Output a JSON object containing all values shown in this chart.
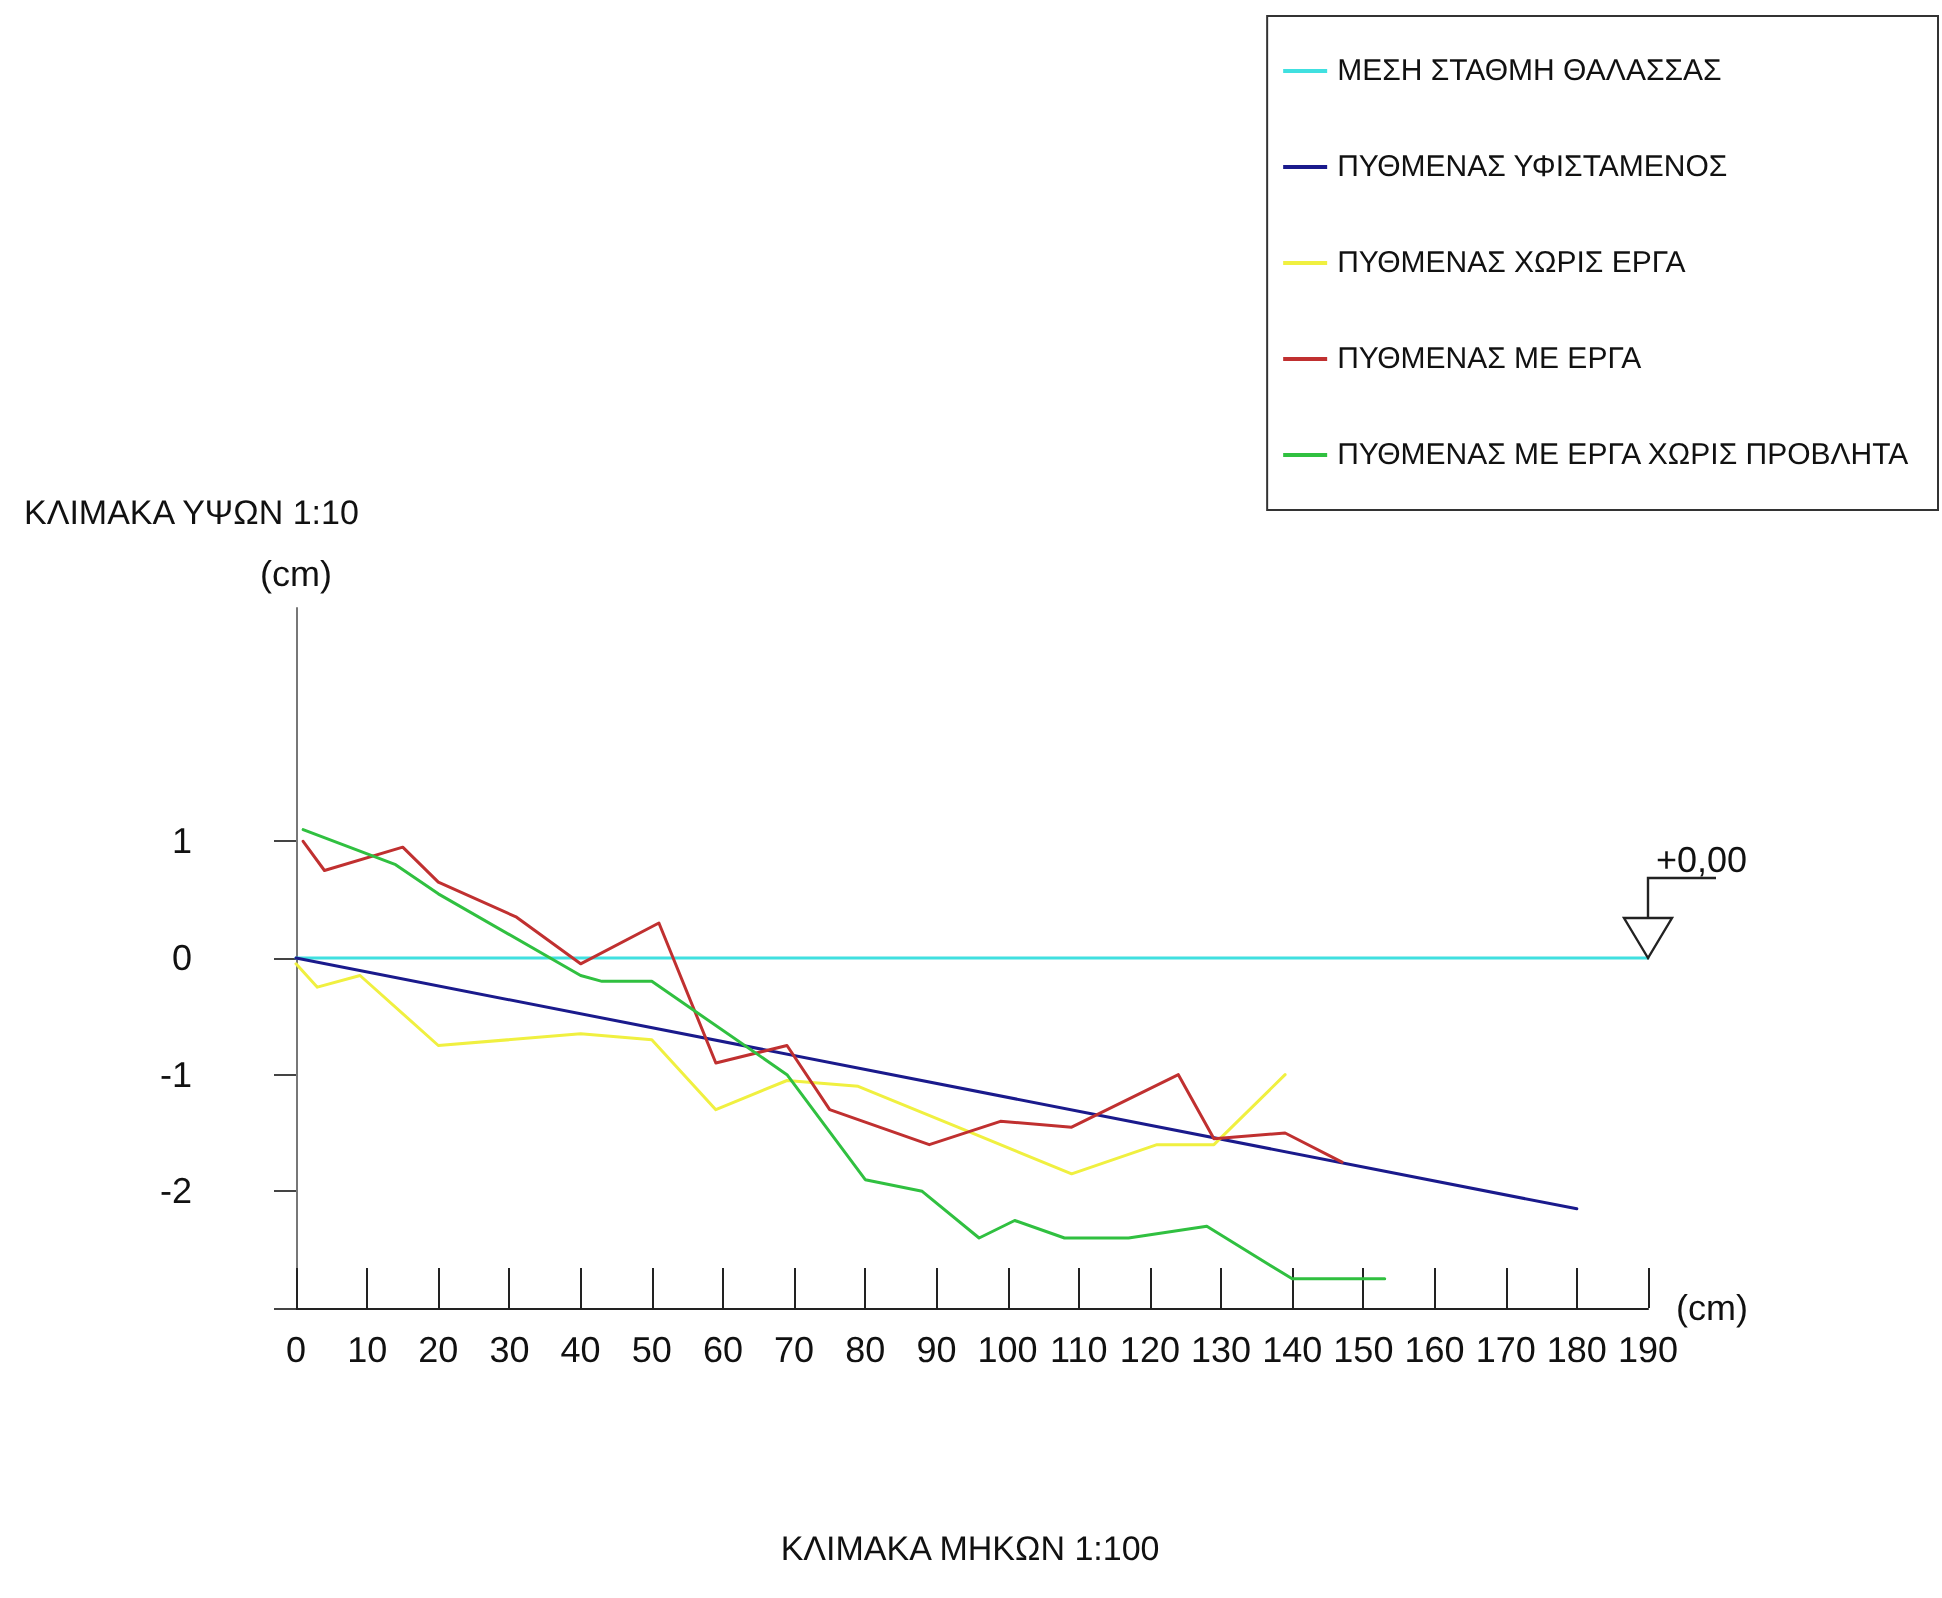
{
  "chart_data": {
    "type": "line",
    "xlabel": "(cm)",
    "ylabel": "(cm)",
    "annotations": [
      "ΚΛΙΜΑΚΑ ΥΨΩΝ 1:10",
      "ΚΛΙΜΑΚΑ ΜΗΚΩΝ 1:100",
      {
        "text": "+0,00",
        "x": 190,
        "y": 0
      }
    ],
    "series": [
      {
        "name": "ΜΕΣΗ ΣΤΑΘΜΗ ΘΑΛΑΣΣΑΣ",
        "color": "#40e0e0",
        "x": [
          0,
          190
        ],
        "values": [
          0,
          0
        ]
      },
      {
        "name": "ΠΥΘΜΕΝΑΣ ΥΦΙΣΤΑΜΕΝΟΣ",
        "color": "#1a1a8c",
        "x": [
          0,
          180
        ],
        "values": [
          0,
          -2.15
        ]
      },
      {
        "name": "ΠΥΘΜΕΝΑΣ ΧΩΡΙΣ ΕΡΓΑ",
        "color": "#f0f040",
        "x": [
          0,
          3,
          9,
          20,
          40,
          50,
          59,
          69,
          79,
          93,
          109,
          121,
          129,
          139
        ],
        "values": [
          -0.05,
          -0.25,
          -0.15,
          -0.75,
          -0.65,
          -0.7,
          -1.3,
          -1.05,
          -1.1,
          -1.45,
          -1.85,
          -1.6,
          -1.6,
          -1.0
        ]
      },
      {
        "name": "ΠΥΘΜΕΝΑΣ ΜΕ ΕΡΓΑ",
        "color": "#c03030",
        "x": [
          1,
          4,
          15,
          20,
          31,
          40,
          51,
          59,
          69,
          75,
          89,
          99,
          109,
          124,
          129,
          139,
          147
        ],
        "values": [
          1.0,
          0.75,
          0.95,
          0.65,
          0.35,
          -0.05,
          0.3,
          -0.9,
          -0.75,
          -1.3,
          -1.6,
          -1.4,
          -1.45,
          -1.0,
          -1.55,
          -1.5,
          -1.75
        ]
      },
      {
        "name": "ΠΥΘΜΕΝΑΣ ΜΕ ΕΡΓΑ ΧΩΡΙΣ ΠΡΟΒΛΗΤΑ",
        "color": "#30c040",
        "x": [
          1,
          14,
          20,
          40,
          43,
          50,
          69,
          80,
          88,
          96,
          101,
          108,
          117,
          128,
          140,
          153
        ],
        "values": [
          1.1,
          0.8,
          0.55,
          -0.15,
          -0.2,
          -0.2,
          -1.0,
          -1.9,
          -2.0,
          -2.4,
          -2.25,
          -2.4,
          -2.4,
          -2.3,
          -2.75,
          -2.75
        ]
      }
    ],
    "xlim": [
      0,
      190
    ],
    "xticks": [
      0,
      10,
      20,
      30,
      40,
      50,
      60,
      70,
      80,
      90,
      100,
      110,
      120,
      130,
      140,
      150,
      160,
      170,
      180,
      190
    ],
    "ylim": [
      -3,
      3
    ],
    "yticks": [
      {
        "value": -3,
        "label": null
      },
      -2,
      -1,
      0,
      1
    ],
    "legend": "top right",
    "grid": false,
    "marker": "none",
    "line_style": "solid"
  }
}
